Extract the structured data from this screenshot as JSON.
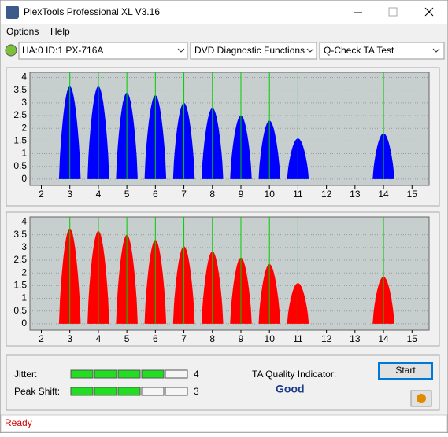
{
  "window": {
    "title": "PlexTools Professional XL V3.16"
  },
  "menu": [
    "Options",
    "Help"
  ],
  "toolbar": {
    "drive": "HA:0 ID:1  PX-716A",
    "function": "DVD Diagnostic Functions",
    "test": "Q-Check TA Test"
  },
  "chart_data": [
    {
      "type": "area",
      "x": [
        3,
        4,
        5,
        6,
        7,
        8,
        9,
        10,
        11,
        14
      ],
      "values": [
        3.65,
        3.65,
        3.4,
        3.3,
        3.0,
        2.8,
        2.5,
        2.3,
        1.6,
        1.8
      ],
      "color": "#0000ff",
      "marker_color": "#00cc00",
      "xlim": [
        1.6,
        15.6
      ],
      "ylim": [
        -0.25,
        4.2
      ],
      "xticks": [
        2,
        3,
        4,
        5,
        6,
        7,
        8,
        9,
        10,
        11,
        12,
        13,
        14,
        15
      ],
      "yticks": [
        0,
        0.5,
        1,
        1.5,
        2,
        2.5,
        3,
        3.5,
        4
      ],
      "grid": true
    },
    {
      "type": "area",
      "x": [
        3,
        4,
        5,
        6,
        7,
        8,
        9,
        10,
        11,
        14
      ],
      "values": [
        3.75,
        3.65,
        3.5,
        3.3,
        3.05,
        2.85,
        2.6,
        2.35,
        1.6,
        1.85
      ],
      "color": "#ff0000",
      "marker_color": "#00cc00",
      "xlim": [
        1.6,
        15.6
      ],
      "ylim": [
        -0.25,
        4.2
      ],
      "xticks": [
        2,
        3,
        4,
        5,
        6,
        7,
        8,
        9,
        10,
        11,
        12,
        13,
        14,
        15
      ],
      "yticks": [
        0,
        0.5,
        1,
        1.5,
        2,
        2.5,
        3,
        3.5,
        4
      ],
      "grid": true
    }
  ],
  "results": {
    "jitter_label": "Jitter:",
    "jitter": 4,
    "peak_shift_label": "Peak Shift:",
    "peak_shift": 3,
    "ta_label": "TA Quality Indicator:",
    "ta_value": "Good",
    "start": "Start"
  },
  "status": "Ready"
}
